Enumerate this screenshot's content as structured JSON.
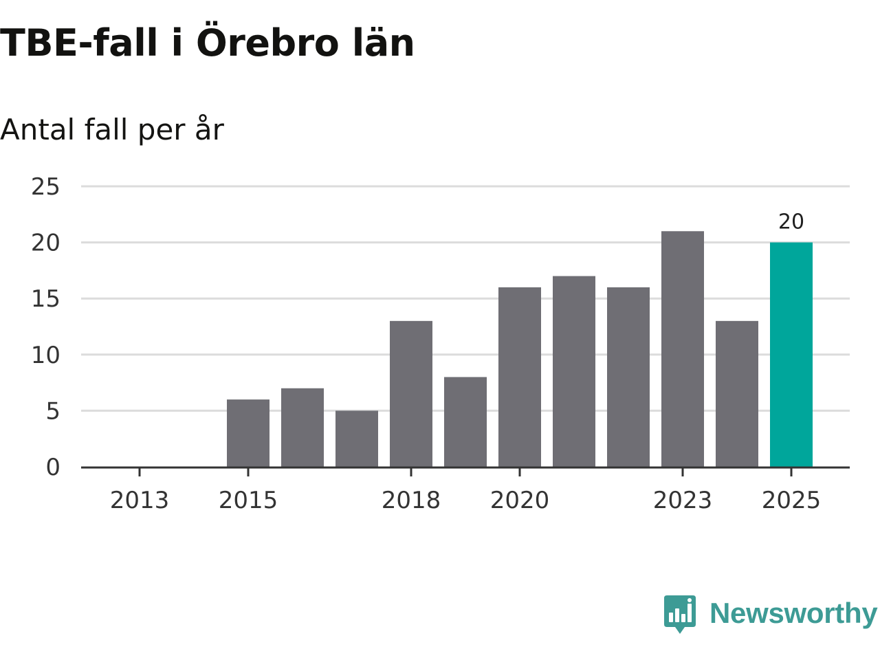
{
  "chart_data": {
    "type": "bar",
    "title": "TBE-fall i Örebro län",
    "subtitle": "Antal fall per år",
    "categories": [
      "2013",
      "2014",
      "2015",
      "2016",
      "2017",
      "2018",
      "2019",
      "2020",
      "2021",
      "2022",
      "2023",
      "2024",
      "2025"
    ],
    "values": [
      0,
      0,
      6,
      7,
      5,
      13,
      8,
      16,
      17,
      16,
      21,
      13,
      20
    ],
    "x_tick_labels": [
      "2013",
      "2015",
      "2018",
      "2020",
      "2023",
      "2025"
    ],
    "y_ticks": [
      0,
      5,
      10,
      15,
      20,
      25
    ],
    "ylim": [
      0,
      25
    ],
    "highlight": {
      "category": "2025",
      "label": "20"
    },
    "colors": {
      "bar": "#6f6e74",
      "highlight": "#00a69b",
      "grid": "#dcdcdc",
      "axis": "#333333"
    },
    "grid": true,
    "xlabel": "",
    "ylabel": ""
  },
  "logo": {
    "text": "Newsworthy",
    "icon": "newsworthy-logo-icon",
    "color": "#3d9b95"
  }
}
